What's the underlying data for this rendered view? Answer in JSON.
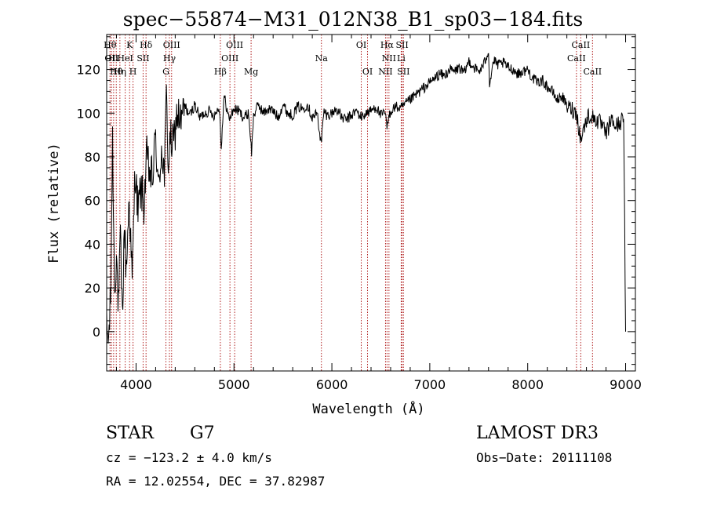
{
  "chart_data": {
    "type": "line",
    "title": "spec−55874−M31_012N38_B1_sp03−184.fits",
    "xlabel": "Wavelength (Å)",
    "ylabel": "Flux (relative)",
    "xlim": [
      3700,
      9100
    ],
    "ylim": [
      -18,
      136
    ],
    "xticks": [
      4000,
      5000,
      6000,
      7000,
      8000,
      9000
    ],
    "yticks": [
      0,
      20,
      40,
      60,
      80,
      100,
      120
    ],
    "grid": false,
    "series": [
      {
        "name": "flux",
        "x": [
          3700,
          3720,
          3740,
          3760,
          3780,
          3800,
          3820,
          3840,
          3860,
          3880,
          3900,
          3930,
          3960,
          3990,
          4020,
          4050,
          4080,
          4110,
          4140,
          4170,
          4200,
          4230,
          4260,
          4290,
          4310,
          4330,
          4350,
          4380,
          4420,
          4460,
          4500,
          4550,
          4600,
          4650,
          4700,
          4750,
          4800,
          4850,
          4870,
          4900,
          4950,
          5000,
          5050,
          5100,
          5150,
          5180,
          5200,
          5250,
          5300,
          5350,
          5400,
          5450,
          5500,
          5550,
          5600,
          5650,
          5700,
          5750,
          5800,
          5850,
          5890,
          5920,
          5950,
          6000,
          6050,
          6100,
          6150,
          6200,
          6250,
          6300,
          6350,
          6400,
          6450,
          6500,
          6550,
          6563,
          6580,
          6600,
          6650,
          6700,
          6750,
          6800,
          6850,
          6900,
          6950,
          7000,
          7050,
          7100,
          7150,
          7200,
          7250,
          7300,
          7350,
          7400,
          7450,
          7500,
          7550,
          7600,
          7610,
          7650,
          7700,
          7750,
          7800,
          7850,
          7900,
          7950,
          8000,
          8050,
          8100,
          8150,
          8200,
          8250,
          8300,
          8350,
          8400,
          8450,
          8500,
          8540,
          8580,
          8620,
          8660,
          8700,
          8750,
          8800,
          8850,
          8900,
          8950,
          8980,
          9000
        ],
        "values": [
          0,
          -4,
          15,
          88,
          20,
          35,
          10,
          42,
          5,
          48,
          28,
          62,
          22,
          75,
          55,
          66,
          58,
          80,
          72,
          70,
          90,
          63,
          85,
          72,
          108,
          76,
          88,
          85,
          100,
          96,
          103,
          99,
          104,
          98,
          100,
          101,
          99,
          103,
          85,
          108,
          97,
          102,
          101,
          98,
          100,
          82,
          99,
          104,
          100,
          102,
          101,
          98,
          104,
          100,
          99,
          103,
          102,
          104,
          98,
          100,
          86,
          101,
          99,
          100,
          102,
          98,
          97,
          99,
          101,
          98,
          100,
          101,
          103,
          99,
          100,
          92,
          98,
          101,
          103,
          102,
          104,
          106,
          108,
          110,
          112,
          114,
          116,
          118,
          117,
          120,
          119,
          121,
          118,
          124,
          121,
          119,
          122,
          129,
          113,
          124,
          122,
          123,
          121,
          120,
          118,
          119,
          120,
          116,
          114,
          115,
          112,
          110,
          106,
          108,
          103,
          102,
          100,
          88,
          94,
          99,
          98,
          97,
          95,
          90,
          97,
          94,
          96,
          98,
          0
        ]
      }
    ],
    "line_markers": [
      {
        "wl": 3734,
        "row": 0,
        "label": "Hθ"
      },
      {
        "wl": 3750,
        "row": 1,
        "label": "OII"
      },
      {
        "wl": 3771,
        "row": 1,
        "label": "Hι"
      },
      {
        "wl": 3798,
        "row": 2,
        "label": "Hθ"
      },
      {
        "wl": 3835,
        "row": 2,
        "label": "Hη"
      },
      {
        "wl": 3889,
        "row": 1,
        "label": "HeI"
      },
      {
        "wl": 3934,
        "row": 0,
        "label": "K"
      },
      {
        "wl": 3969,
        "row": 2,
        "label": "H"
      },
      {
        "wl": 4072,
        "row": 1,
        "label": "SII"
      },
      {
        "wl": 4102,
        "row": 0,
        "label": "Hδ"
      },
      {
        "wl": 4305,
        "row": 2,
        "label": "G"
      },
      {
        "wl": 4341,
        "row": 1,
        "label": "Hγ"
      },
      {
        "wl": 4363,
        "row": 0,
        "label": "OIII"
      },
      {
        "wl": 4861,
        "row": 2,
        "label": "Hβ"
      },
      {
        "wl": 4959,
        "row": 1,
        "label": "OIII"
      },
      {
        "wl": 5007,
        "row": 0,
        "label": "OIII"
      },
      {
        "wl": 5175,
        "row": 2,
        "label": "Mg"
      },
      {
        "wl": 5893,
        "row": 1,
        "label": "Na"
      },
      {
        "wl": 6300,
        "row": 0,
        "label": "OI"
      },
      {
        "wl": 6364,
        "row": 2,
        "label": "OI"
      },
      {
        "wl": 6548,
        "row": 2,
        "label": "NII"
      },
      {
        "wl": 6563,
        "row": 0,
        "label": "Hα"
      },
      {
        "wl": 6583,
        "row": 1,
        "label": "NII"
      },
      {
        "wl": 6708,
        "row": 1,
        "label": "Li"
      },
      {
        "wl": 6717,
        "row": 0,
        "label": "SII"
      },
      {
        "wl": 6731,
        "row": 2,
        "label": "SII"
      },
      {
        "wl": 8498,
        "row": 1,
        "label": "CaII"
      },
      {
        "wl": 8542,
        "row": 0,
        "label": "CaII"
      },
      {
        "wl": 8662,
        "row": 2,
        "label": "CaII"
      }
    ]
  },
  "info": {
    "object_class": "STAR",
    "subclass": "G7",
    "survey": "LAMOST DR3",
    "redshift_line": "cz = −123.2 ± 4.0 km/s",
    "obs_date_line": "Obs−Date: 20111108",
    "coords_line": "RA =  12.02554, DEC =  37.82987"
  }
}
